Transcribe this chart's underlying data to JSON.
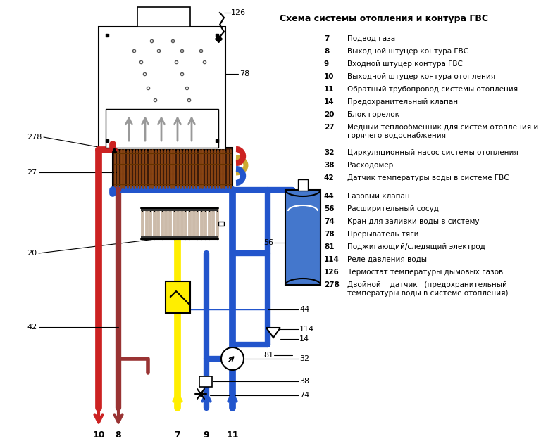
{
  "title": "Схема системы отопления и контура ГВС",
  "bg_color": "#ffffff",
  "legend_items_group1": [
    {
      "num": "7",
      "text": "Подвод газа"
    },
    {
      "num": "8",
      "text": "Выходной штуцер контура ГВС"
    },
    {
      "num": "9",
      "text": "Входной штуцер контура ГВС"
    },
    {
      "num": "10",
      "text": "Выходной штуцер контура отопления"
    },
    {
      "num": "11",
      "text": "Обратный трубопровод системы отопления"
    },
    {
      "num": "14",
      "text": "Предохранительный клапан"
    },
    {
      "num": "20",
      "text": "Блок горелок"
    },
    {
      "num": "27",
      "text": "Медный теплообменник для систем отопления и горячего водоснабжения"
    },
    {
      "num": "32",
      "text": "Циркуляционный насос системы отопления"
    },
    {
      "num": "38",
      "text": "Расходомер"
    },
    {
      "num": "42",
      "text": "Датчик температуры воды в системе ГВС"
    }
  ],
  "legend_items_group2": [
    {
      "num": "44",
      "text": "Газовый клапан"
    },
    {
      "num": "56",
      "text": "Расширительный сосуд"
    },
    {
      "num": "74",
      "text": "Кран для заливки воды в систему"
    },
    {
      "num": "78",
      "text": "Прерыватель тяги"
    },
    {
      "num": "81",
      "text": "Поджигающий/следящий электрод"
    },
    {
      "num": "114",
      "text": "Реле давления воды"
    },
    {
      "num": "126",
      "text": "Термостат температуры дымовых газов"
    },
    {
      "num": "278",
      "text": "Двойной    датчик   (предохранительный температуры воды в системе отопления)"
    }
  ],
  "colors": {
    "red": "#cc2222",
    "dred": "#993333",
    "blue": "#2255cc",
    "lblue": "#4488dd",
    "yellow": "#ffee00",
    "gray": "#999999",
    "lgray": "#bbbbbb",
    "black": "#000000",
    "copper": "#8B4513",
    "expblue": "#4477cc"
  },
  "figsize": [
    7.68,
    6.27
  ],
  "dpi": 100
}
